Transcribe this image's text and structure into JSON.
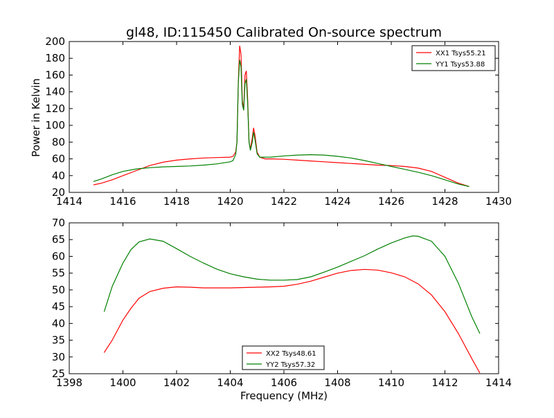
{
  "chart_data": [
    {
      "type": "line",
      "title": "gl48, ID:115450 Calibrated On-source spectrum",
      "xlabel": "",
      "ylabel": "Power in Kelvin",
      "xlim": [
        1414,
        1430
      ],
      "ylim": [
        20,
        200
      ],
      "xticks": [
        1414,
        1416,
        1418,
        1420,
        1422,
        1424,
        1426,
        1428,
        1430
      ],
      "yticks": [
        20,
        40,
        60,
        80,
        100,
        120,
        140,
        160,
        180,
        200
      ],
      "grid": false,
      "legend": "top-right",
      "series": [
        {
          "name": "XX1 Tsys55.21",
          "color": "#ff0000",
          "points": [
            [
              1414.9,
              29
            ],
            [
              1415.2,
              31
            ],
            [
              1415.6,
              35
            ],
            [
              1416.0,
              40
            ],
            [
              1416.5,
              46
            ],
            [
              1417.0,
              52
            ],
            [
              1417.5,
              56
            ],
            [
              1418.0,
              58.5
            ],
            [
              1418.5,
              60
            ],
            [
              1419.0,
              61
            ],
            [
              1419.5,
              61.5
            ],
            [
              1420.0,
              62
            ],
            [
              1420.1,
              63
            ],
            [
              1420.2,
              68
            ],
            [
              1420.25,
              80
            ],
            [
              1420.3,
              150
            ],
            [
              1420.35,
              195
            ],
            [
              1420.4,
              185
            ],
            [
              1420.45,
              130
            ],
            [
              1420.5,
              118
            ],
            [
              1420.55,
              160
            ],
            [
              1420.6,
              165
            ],
            [
              1420.65,
              130
            ],
            [
              1420.7,
              80
            ],
            [
              1420.75,
              72
            ],
            [
              1420.82,
              85
            ],
            [
              1420.87,
              97
            ],
            [
              1420.92,
              88
            ],
            [
              1421.0,
              68
            ],
            [
              1421.1,
              62
            ],
            [
              1421.3,
              60
            ],
            [
              1421.6,
              60
            ],
            [
              1422.0,
              59.5
            ],
            [
              1422.5,
              58.5
            ],
            [
              1423.0,
              57.5
            ],
            [
              1423.5,
              56.5
            ],
            [
              1424.0,
              55.5
            ],
            [
              1424.5,
              54.5
            ],
            [
              1425.0,
              53.5
            ],
            [
              1425.5,
              52.5
            ],
            [
              1426.0,
              52
            ],
            [
              1426.5,
              51
            ],
            [
              1427.0,
              49
            ],
            [
              1427.5,
              45
            ],
            [
              1428.0,
              38
            ],
            [
              1428.5,
              31
            ],
            [
              1428.9,
              27
            ]
          ]
        },
        {
          "name": "YY1 Tsys53.88",
          "color": "#008000",
          "points": [
            [
              1414.9,
              33
            ],
            [
              1415.2,
              36
            ],
            [
              1415.6,
              41
            ],
            [
              1416.0,
              45
            ],
            [
              1416.5,
              48
            ],
            [
              1417.0,
              49.5
            ],
            [
              1417.5,
              50.5
            ],
            [
              1418.0,
              51
            ],
            [
              1418.5,
              51.5
            ],
            [
              1419.0,
              52.5
            ],
            [
              1419.5,
              54
            ],
            [
              1420.0,
              56.5
            ],
            [
              1420.1,
              58
            ],
            [
              1420.2,
              65
            ],
            [
              1420.25,
              80
            ],
            [
              1420.3,
              150
            ],
            [
              1420.35,
              178
            ],
            [
              1420.4,
              170
            ],
            [
              1420.45,
              125
            ],
            [
              1420.5,
              118
            ],
            [
              1420.55,
              150
            ],
            [
              1420.6,
              155
            ],
            [
              1420.65,
              125
            ],
            [
              1420.7,
              80
            ],
            [
              1420.75,
              70
            ],
            [
              1420.82,
              80
            ],
            [
              1420.87,
              92
            ],
            [
              1420.92,
              83
            ],
            [
              1421.0,
              66
            ],
            [
              1421.1,
              62
            ],
            [
              1421.5,
              62
            ],
            [
              1422.0,
              63.5
            ],
            [
              1422.5,
              64.5
            ],
            [
              1423.0,
              65
            ],
            [
              1423.5,
              64.5
            ],
            [
              1424.0,
              63
            ],
            [
              1424.5,
              61
            ],
            [
              1425.0,
              58
            ],
            [
              1425.5,
              54.5
            ],
            [
              1426.0,
              51
            ],
            [
              1426.5,
              47.5
            ],
            [
              1427.0,
              44
            ],
            [
              1427.5,
              40
            ],
            [
              1428.0,
              35
            ],
            [
              1428.5,
              30
            ],
            [
              1428.9,
              27
            ]
          ]
        }
      ]
    },
    {
      "type": "line",
      "title": "",
      "xlabel": "Frequency (MHz)",
      "ylabel": "",
      "xlim": [
        1398,
        1414
      ],
      "ylim": [
        25,
        70
      ],
      "xticks": [
        1398,
        1400,
        1402,
        1404,
        1406,
        1408,
        1410,
        1412,
        1414
      ],
      "yticks": [
        25,
        30,
        35,
        40,
        45,
        50,
        55,
        60,
        65,
        70
      ],
      "grid": false,
      "legend": "lower-center",
      "series": [
        {
          "name": "XX2 Tsys48.61",
          "color": "#ff0000",
          "points": [
            [
              1399.3,
              31.3
            ],
            [
              1399.6,
              35
            ],
            [
              1400.0,
              41
            ],
            [
              1400.3,
              44.5
            ],
            [
              1400.6,
              47.5
            ],
            [
              1401.0,
              49.5
            ],
            [
              1401.5,
              50.5
            ],
            [
              1402.0,
              50.9
            ],
            [
              1402.5,
              50.8
            ],
            [
              1403.0,
              50.6
            ],
            [
              1403.5,
              50.6
            ],
            [
              1404.0,
              50.6
            ],
            [
              1404.5,
              50.7
            ],
            [
              1405.0,
              50.8
            ],
            [
              1405.5,
              50.9
            ],
            [
              1406.0,
              51.1
            ],
            [
              1406.5,
              51.7
            ],
            [
              1407.0,
              52.6
            ],
            [
              1407.5,
              53.8
            ],
            [
              1408.0,
              55
            ],
            [
              1408.5,
              55.8
            ],
            [
              1409.0,
              56.1
            ],
            [
              1409.5,
              55.9
            ],
            [
              1410.0,
              55.1
            ],
            [
              1410.5,
              53.9
            ],
            [
              1411.0,
              51.8
            ],
            [
              1411.5,
              48.5
            ],
            [
              1412.0,
              43.5
            ],
            [
              1412.5,
              37
            ],
            [
              1413.0,
              29.5
            ],
            [
              1413.3,
              25.2
            ]
          ]
        },
        {
          "name": "YY2 Tsys57.32",
          "color": "#008000",
          "points": [
            [
              1399.3,
              43.5
            ],
            [
              1399.6,
              51
            ],
            [
              1400.0,
              58
            ],
            [
              1400.3,
              62
            ],
            [
              1400.6,
              64.3
            ],
            [
              1401.0,
              65.2
            ],
            [
              1401.5,
              64.5
            ],
            [
              1402.0,
              62.3
            ],
            [
              1402.5,
              60
            ],
            [
              1403.0,
              58
            ],
            [
              1403.5,
              56.2
            ],
            [
              1404.0,
              54.8
            ],
            [
              1404.5,
              53.9
            ],
            [
              1405.0,
              53.2
            ],
            [
              1405.5,
              52.9
            ],
            [
              1406.0,
              52.9
            ],
            [
              1406.5,
              53.1
            ],
            [
              1407.0,
              53.9
            ],
            [
              1407.5,
              55.3
            ],
            [
              1408.0,
              56.8
            ],
            [
              1408.5,
              58.5
            ],
            [
              1409.0,
              60.2
            ],
            [
              1409.5,
              62.2
            ],
            [
              1410.0,
              64
            ],
            [
              1410.5,
              65.5
            ],
            [
              1410.8,
              66.1
            ],
            [
              1411.0,
              66
            ],
            [
              1411.5,
              64.5
            ],
            [
              1412.0,
              60
            ],
            [
              1412.5,
              52
            ],
            [
              1413.0,
              42
            ],
            [
              1413.3,
              37
            ]
          ]
        }
      ]
    }
  ]
}
